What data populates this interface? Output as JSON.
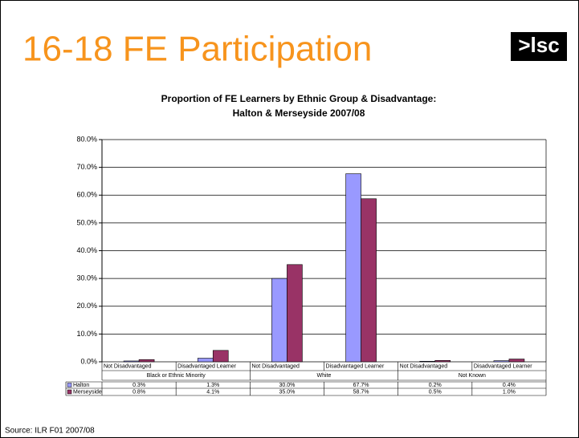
{
  "heading": "16-18 FE Participation",
  "logo": ">lsc",
  "source": "Source: ILR F01 2007/08",
  "chart_data": {
    "type": "bar",
    "title": [
      "Proportion of FE Learners by Ethnic Group & Disadvantage:",
      "Halton & Merseyside 2007/08"
    ],
    "groups": [
      {
        "name": "Black or Ethnic Minority",
        "categories": [
          "Not Disadvantaged",
          "Disadvantaged Learner"
        ]
      },
      {
        "name": "White",
        "categories": [
          "Not Disadvantaged",
          "Disadvantaged Learner"
        ]
      },
      {
        "name": "Not Known",
        "categories": [
          "Not Disadvantaged",
          "Disadvantaged Learner"
        ]
      }
    ],
    "series": [
      {
        "name": "Halton",
        "color": "#9999ff",
        "values": [
          0.3,
          1.3,
          30.0,
          67.7,
          0.2,
          0.4
        ],
        "value_labels": [
          "0.3%",
          "1.3%",
          "30.0%",
          "67.7%",
          "0.2%",
          "0.4%"
        ]
      },
      {
        "name": "Merseyside",
        "color": "#993366",
        "values": [
          0.8,
          4.1,
          35.0,
          58.7,
          0.5,
          1.0
        ],
        "value_labels": [
          "0.8%",
          "4.1%",
          "35.0%",
          "58.7%",
          "0.5%",
          "1.0%"
        ]
      }
    ],
    "ylim": [
      0,
      80
    ],
    "yticks": [
      {
        "value": 0,
        "label": "0.0%"
      },
      {
        "value": 10,
        "label": "10.0%"
      },
      {
        "value": 20,
        "label": "20.0%"
      },
      {
        "value": 30,
        "label": "30.0%"
      },
      {
        "value": 40,
        "label": "40.0%"
      },
      {
        "value": 50,
        "label": "50.0%"
      },
      {
        "value": 60,
        "label": "60.0%"
      },
      {
        "value": 70,
        "label": "70.0%"
      },
      {
        "value": 80,
        "label": "80.0%"
      }
    ],
    "grid": true
  }
}
